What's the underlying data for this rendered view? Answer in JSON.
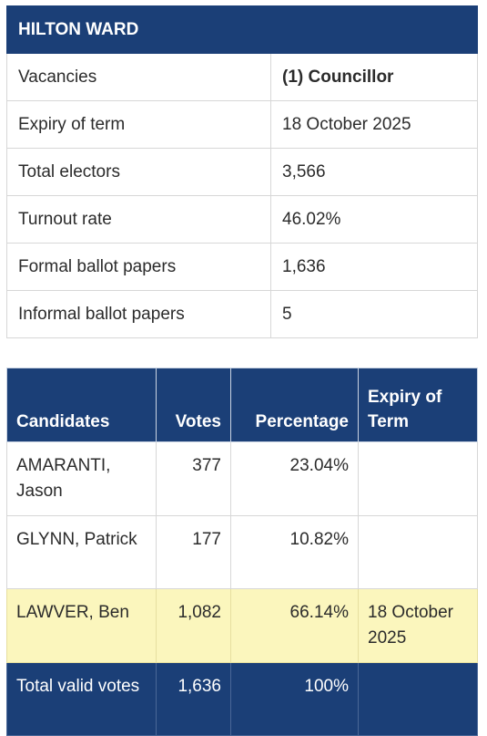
{
  "ward": {
    "title": "HILTON WARD",
    "rows": [
      {
        "label": "Vacancies",
        "value": "(1) Councillor"
      },
      {
        "label": "Expiry of term",
        "value": "18 October 2025"
      },
      {
        "label": "Total electors",
        "value": "3,566"
      },
      {
        "label": "Turnout rate",
        "value": "46.02%"
      },
      {
        "label": "Formal ballot papers",
        "value": "1,636"
      },
      {
        "label": "Informal ballot papers",
        "value": "5"
      }
    ]
  },
  "results": {
    "headers": {
      "candidates": "Candidates",
      "votes": "Votes",
      "percentage": "Percentage",
      "expiry": "Expiry of Term"
    },
    "rows": [
      {
        "candidate": "AMARANTI, Jason",
        "votes": "377",
        "percentage": "23.04%",
        "expiry": ""
      },
      {
        "candidate": "GLYNN, Patrick",
        "votes": "177",
        "percentage": "10.82%",
        "expiry": ""
      },
      {
        "candidate": "LAWVER, Ben",
        "votes": "1,082",
        "percentage": "66.14%",
        "expiry": "18 October 2025"
      }
    ],
    "total": {
      "label": "Total valid votes",
      "votes": "1,636",
      "percentage": "100%",
      "expiry": ""
    }
  },
  "colors": {
    "header_bg": "#1b3f77",
    "winner_bg": "#fbf6bd"
  }
}
